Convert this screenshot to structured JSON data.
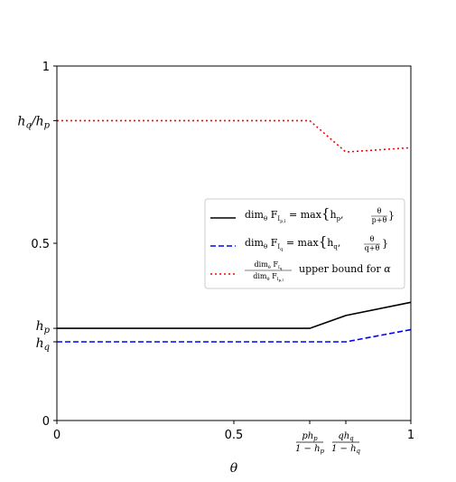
{
  "chart_data": {
    "type": "line",
    "xlabel": "θ",
    "ylabel": "",
    "xlim": [
      0,
      1
    ],
    "ylim": [
      0,
      1
    ],
    "x_ticks": [
      {
        "value": 0,
        "label": "0"
      },
      {
        "value": 0.5,
        "label": "0.5"
      },
      {
        "value": 1,
        "label": "1"
      }
    ],
    "x_special_ticks": [
      {
        "value": 0.7143,
        "num": "ph",
        "num_sub": "p",
        "den": "1 − h",
        "den_sub": "p"
      },
      {
        "value": 0.8163,
        "num": "qh",
        "num_sub": "q",
        "den": "1 − h",
        "den_sub": "q"
      }
    ],
    "y_ticks": [
      {
        "value": 0,
        "label": "0"
      },
      {
        "value": 0.5,
        "label": "0.5"
      },
      {
        "value": 1,
        "label": "1"
      }
    ],
    "y_special_ticks": [
      {
        "value": 0.846,
        "main": "h",
        "sub": "q",
        "after": "/h",
        "after_sub": "p"
      },
      {
        "value": 0.26,
        "main": "h",
        "sub": "p"
      },
      {
        "value": 0.222,
        "main": "h",
        "sub": "q"
      }
    ],
    "series": [
      {
        "style": "solid",
        "color": "#000000",
        "x": [
          0,
          0.7143,
          0.8163,
          1.0
        ],
        "y": [
          0.26,
          0.26,
          0.2962,
          0.3333
        ]
      },
      {
        "style": "dashed",
        "color": "#0000ff",
        "x": [
          0,
          0.8163,
          1.0
        ],
        "y": [
          0.222,
          0.222,
          0.2564
        ]
      },
      {
        "style": "dotted",
        "color": "#ff0000",
        "x": [
          0,
          0.7143,
          0.8163,
          1.0
        ],
        "y": [
          0.846,
          0.846,
          0.7575,
          0.7697
        ]
      }
    ],
    "legend": {
      "placement": "center-right",
      "entries": [
        {
          "text": "dim_θ F_{I_{p,l}} = max{h_p, θ/(p+θ)}"
        },
        {
          "text": "dim_θ F_{I_q} = max{h_q, θ/(q+θ)}"
        },
        {
          "text": "dim_θ F_{I_q} / dim_θ F_{I_{p,l}} upper bound for α"
        }
      ]
    }
  }
}
